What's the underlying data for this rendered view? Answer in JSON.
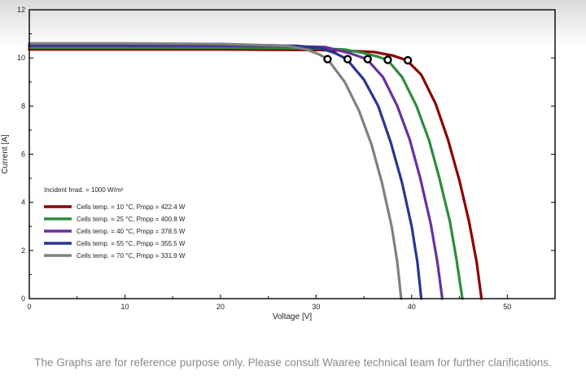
{
  "chart_data": {
    "type": "line",
    "xlabel": "Voltage [V]",
    "ylabel": "Current    [A]",
    "xlim": [
      0,
      55
    ],
    "ylim": [
      0,
      12
    ],
    "xticks": [
      "0",
      "10",
      "20",
      "30",
      "40",
      "50"
    ],
    "yticks": [
      "0",
      "2",
      "4",
      "6",
      "8",
      "10",
      "12"
    ],
    "grid": false,
    "legend_title": "Incident Irrad. = 1000 W/m²",
    "legend_position": "left-middle",
    "series": [
      {
        "name": "Cells temp. = 10 °C,  Pmpp = 422.4 W",
        "color": "#8b0000",
        "x": [
          0,
          10,
          20,
          30,
          33,
          36,
          38,
          39.5,
          41,
          42.5,
          43.8,
          45,
          46,
          46.8,
          47.3
        ],
        "y": [
          10.35,
          10.35,
          10.35,
          10.33,
          10.3,
          10.25,
          10.1,
          9.9,
          9.3,
          8.1,
          6.6,
          4.9,
          3.2,
          1.5,
          0
        ]
      },
      {
        "name": "Cells temp. = 25 °C,  Pmpp = 400.8 W",
        "color": "#2e8b3e",
        "x": [
          0,
          10,
          20,
          30,
          33,
          35,
          36.5,
          37.5,
          39,
          40.5,
          41.8,
          42.9,
          44,
          44.7,
          45.3
        ],
        "y": [
          10.42,
          10.42,
          10.42,
          10.4,
          10.35,
          10.2,
          10.05,
          9.9,
          9.2,
          8.0,
          6.6,
          5.0,
          3.2,
          1.6,
          0
        ]
      },
      {
        "name": "Cells temp. = 40 °C,  Pmpp = 378.5 W",
        "color": "#6a2fa0",
        "x": [
          0,
          10,
          20,
          28,
          31,
          33.5,
          35.3,
          37,
          38.5,
          39.8,
          40.9,
          42,
          42.7,
          43.2
        ],
        "y": [
          10.5,
          10.5,
          10.5,
          10.48,
          10.45,
          10.2,
          9.95,
          9.2,
          8.0,
          6.6,
          5.0,
          3.1,
          1.5,
          0
        ]
      },
      {
        "name": "Cells temp. = 55 °C,  Pmpp = 355.5 W",
        "color": "#283593",
        "x": [
          0,
          10,
          20,
          28,
          30.5,
          32,
          33.2,
          35,
          36.5,
          37.8,
          39,
          40,
          40.6,
          41
        ],
        "y": [
          10.55,
          10.55,
          10.55,
          10.5,
          10.4,
          10.2,
          9.95,
          9.1,
          8.0,
          6.5,
          4.8,
          3.0,
          1.5,
          0
        ]
      },
      {
        "name": "Cells temp. = 70 °C,  Pmpp = 331.9 W",
        "color": "#808080",
        "x": [
          0,
          10,
          20,
          27,
          29,
          30.3,
          31.2,
          33,
          34.5,
          35.8,
          36.9,
          37.9,
          38.5,
          38.9
        ],
        "y": [
          10.6,
          10.6,
          10.58,
          10.5,
          10.35,
          10.15,
          9.95,
          9.0,
          7.8,
          6.4,
          4.8,
          3.0,
          1.5,
          0
        ]
      }
    ],
    "mpp_points": [
      {
        "x": 31.2,
        "y": 9.95
      },
      {
        "x": 33.3,
        "y": 9.95
      },
      {
        "x": 35.4,
        "y": 9.95
      },
      {
        "x": 37.5,
        "y": 9.92
      },
      {
        "x": 39.6,
        "y": 9.9
      }
    ]
  },
  "footnote": "The Graphs are for reference purpose only. Please consult Waaree technical team for further clarifications."
}
